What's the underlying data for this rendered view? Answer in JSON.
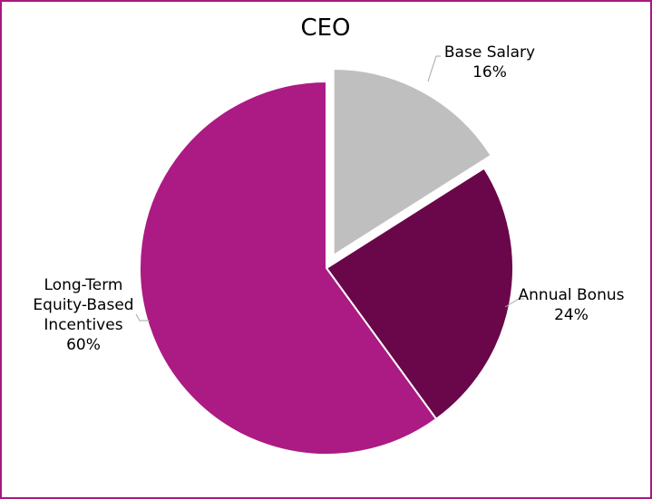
{
  "chart_data": {
    "type": "pie",
    "title": "CEO",
    "slices": [
      {
        "label": "Base Salary",
        "value": 16,
        "value_label": "16%",
        "color": "#bfbfbf",
        "exploded": true
      },
      {
        "label": "Annual Bonus",
        "value": 24,
        "value_label": "24%",
        "color": "#6a064a",
        "exploded": false
      },
      {
        "label": "Long-Term Equity-Based Incentives",
        "value": 60,
        "value_label": "60%",
        "color": "#ac1a83",
        "exploded": false
      }
    ],
    "start_angle_degrees": 0,
    "direction": "clockwise",
    "legend": "none",
    "data_labels": "outside with leader lines"
  },
  "colors": {
    "border": "#a8197f",
    "leader_line": "#a6a6a6",
    "background": "#ffffff"
  }
}
